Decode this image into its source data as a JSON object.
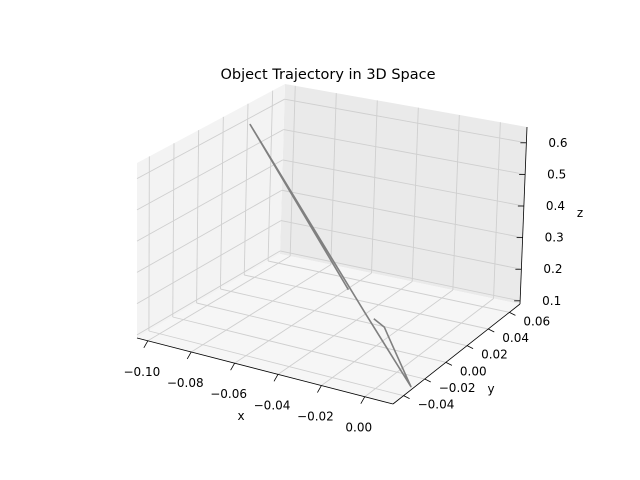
{
  "chart_data": {
    "type": "line",
    "title": "Object Trajectory in 3D Space",
    "xlabel": "x",
    "ylabel": "y",
    "zlabel": "z",
    "x_ticks": [
      "−0.10",
      "−0.08",
      "−0.06",
      "−0.04",
      "−0.02",
      "0.00"
    ],
    "y_ticks": [
      "−0.04",
      "−0.02",
      "0.00",
      "0.02",
      "0.04",
      "0.06"
    ],
    "z_ticks": [
      "0.1",
      "0.2",
      "0.3",
      "0.4",
      "0.5",
      "0.6"
    ],
    "grid": true,
    "series": [
      {
        "color": "#808080",
        "points": [
          {
            "x": -0.035,
            "y": 0.0,
            "z": 0.258
          },
          {
            "x": -0.105,
            "y": 0.045,
            "z": 0.56
          },
          {
            "x": -0.018,
            "y": -0.018,
            "z": 0.26
          },
          {
            "x": 0.013,
            "y": -0.035,
            "z": 0.112
          },
          {
            "x": -0.01,
            "y": -0.012,
            "z": 0.18
          },
          {
            "x": -0.013,
            "y": -0.01,
            "z": 0.2
          },
          {
            "x": -0.02,
            "y": -0.006,
            "z": 0.205
          }
        ]
      }
    ]
  }
}
